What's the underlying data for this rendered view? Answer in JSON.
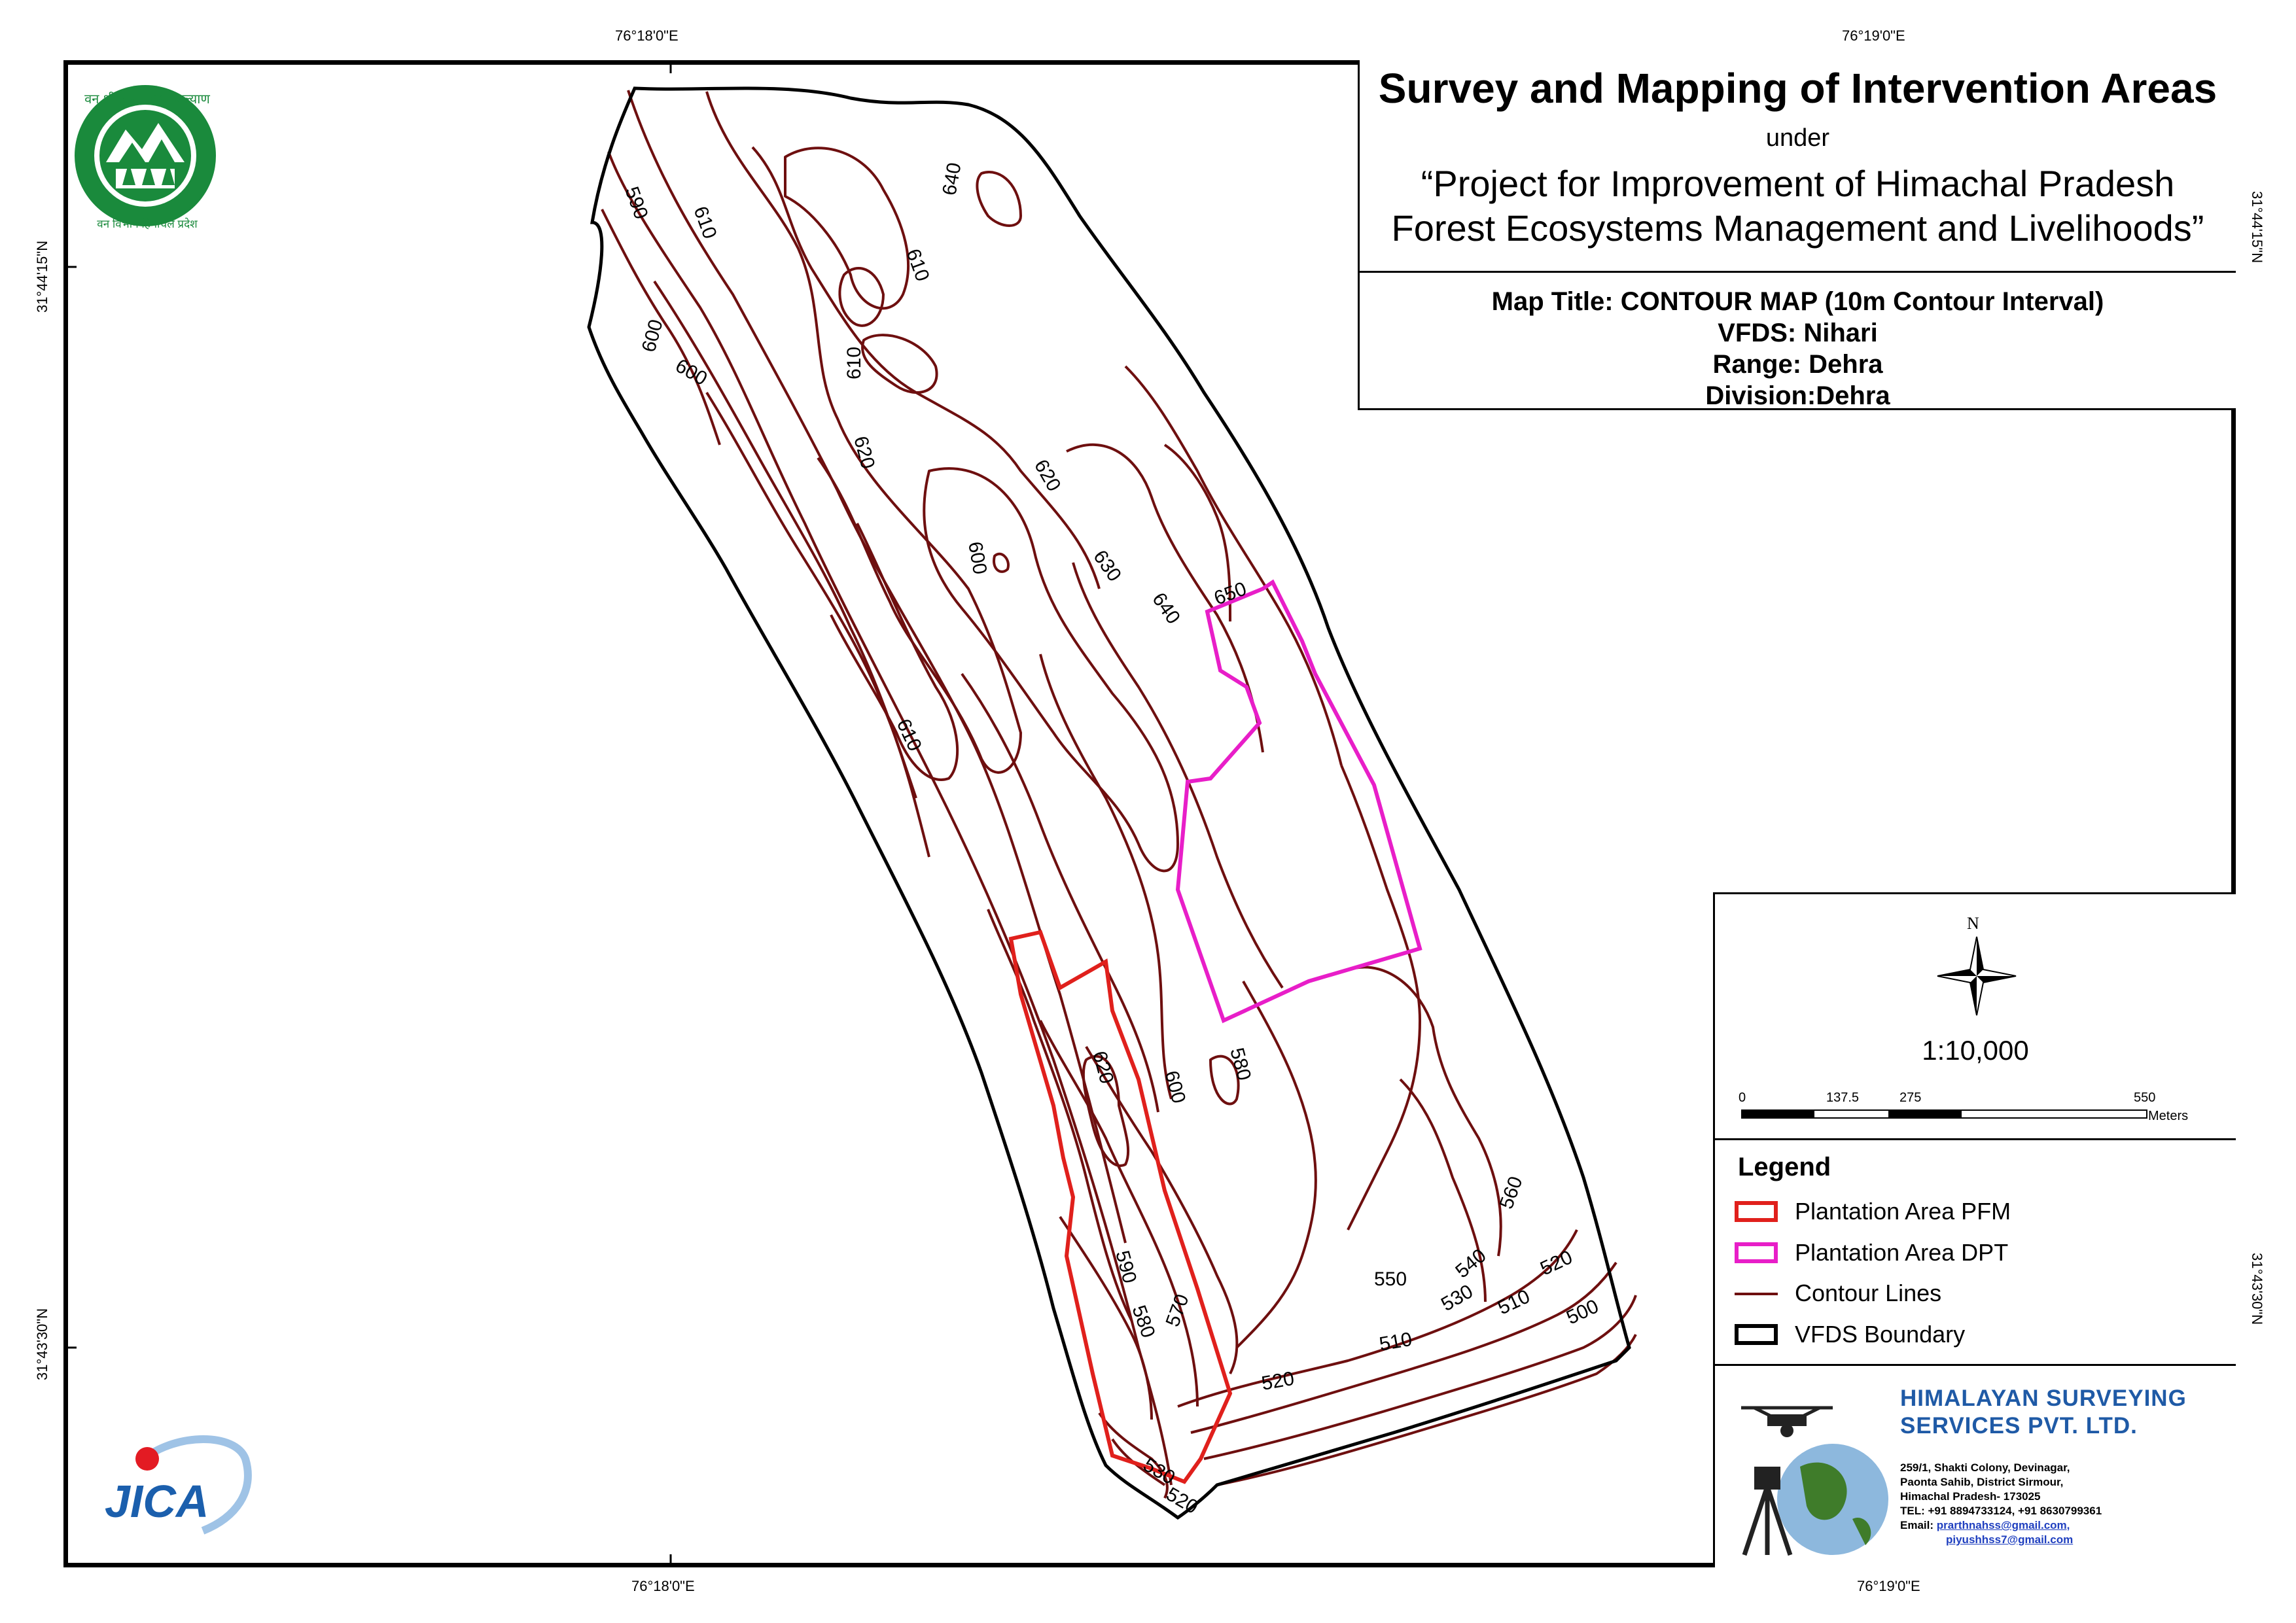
{
  "grid": {
    "lon_top_left": "76°18'0\"E",
    "lon_top_right": "76°19'0\"E",
    "lon_bottom_left": "76°18'0\"E",
    "lon_bottom_right": "76°19'0\"E",
    "lat_left_upper": "31°44'15\"N",
    "lat_left_lower": "31°43'30\"N",
    "lat_right_upper": "31°44'15\"N",
    "lat_right_lower": "31°43'30\"N"
  },
  "title": {
    "main": "Survey and Mapping of Intervention Areas",
    "under": "under",
    "project_line1": "“Project for Improvement of Himachal Pradesh",
    "project_line2": "Forest Ecosystems Management and Livelihoods”",
    "map_title": "Map Title: CONTOUR MAP (10m Contour Interval)",
    "vfds": "VFDS: Nihari",
    "range": "Range: Dehra",
    "division": "Division:Dehra"
  },
  "north_arrow": {
    "label": "N"
  },
  "scale": {
    "ratio": "1:10,000",
    "ticks": [
      "0",
      "137.5",
      "275",
      "550"
    ],
    "unit": "Meters"
  },
  "legend": {
    "title": "Legend",
    "items": [
      {
        "label": "Plantation Area PFM",
        "color": "#e0201c"
      },
      {
        "label": "Plantation Area DPT",
        "color": "#e81ec8"
      },
      {
        "label": "Contour Lines",
        "color": "#6e0f0f"
      },
      {
        "label": "VFDS Boundary",
        "color": "#000000"
      }
    ]
  },
  "company": {
    "name_line1": "HIMALAYAN SURVEYING",
    "name_line2": "SERVICES PVT. LTD.",
    "addr1": "259/1, Shakti Colony, Devinagar,",
    "addr2": "Paonta Sahib, District Sirmour,",
    "addr3": "Himachal Pradesh- 173025",
    "tel": "TEL: +91 8894733124, +91 8630799361",
    "email_label": "Email:",
    "email1": "prarthnahss@gmail.com,",
    "email2": "piyushhss7@gmail.com"
  },
  "logos": {
    "forest_dept_text_top": "वन श्री त्राण, विश्व कल्याण",
    "forest_dept_text_bottom": "वन विभाग हिमाचल प्रदेश",
    "jica": "JICA"
  },
  "contour_labels": [
    "590",
    "610",
    "640",
    "610",
    "610",
    "600",
    "600",
    "620",
    "620",
    "600",
    "630",
    "640",
    "650",
    "610",
    "620",
    "600",
    "580",
    "560",
    "590",
    "550",
    "540",
    "520",
    "530",
    "510",
    "580",
    "570",
    "500",
    "510",
    "520",
    "530",
    "520"
  ]
}
